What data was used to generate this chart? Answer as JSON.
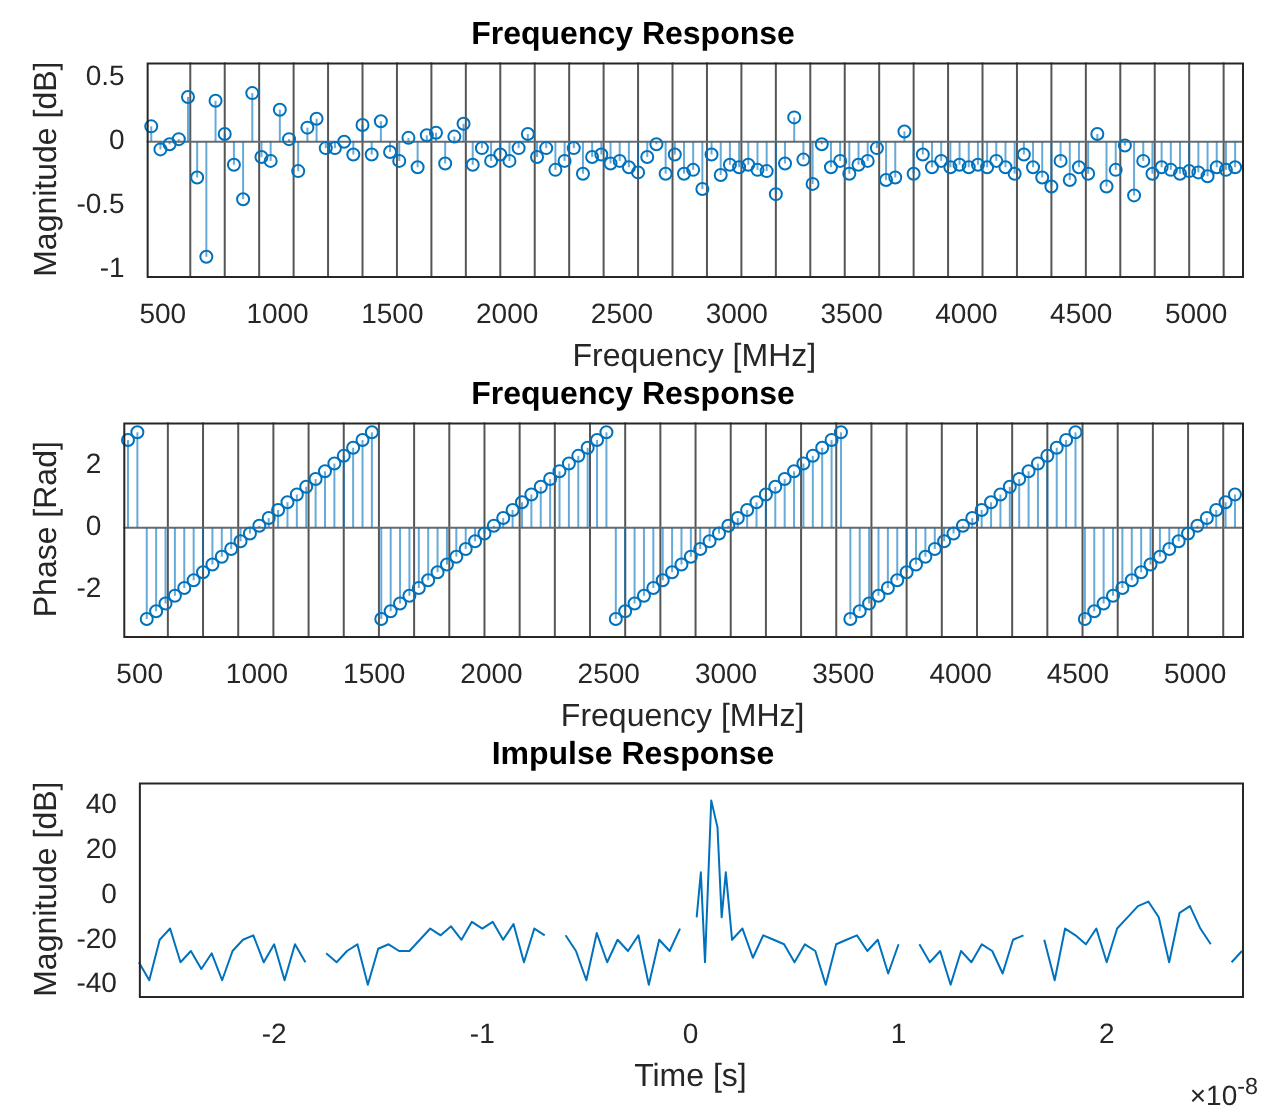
{
  "chart_data": [
    {
      "type": "lollipop",
      "title": "Frequency Response",
      "xlabel": "Frequency [MHz]",
      "ylabel": "Magnitude [dB]",
      "color": "#0072bd",
      "marker": "circle",
      "xlim": [
        430,
        5200
      ],
      "xticks": [
        500,
        1000,
        1500,
        2000,
        2500,
        3000,
        3500,
        4000,
        4500,
        5000
      ],
      "ylim": [
        -1.05,
        0.62
      ],
      "yticks": [
        -1,
        -0.5,
        0,
        0.5
      ],
      "x": [
        450,
        490,
        530,
        570,
        610,
        650,
        690,
        730,
        770,
        810,
        850,
        890,
        930,
        970,
        1010,
        1050,
        1090,
        1130,
        1170,
        1210,
        1250,
        1290,
        1330,
        1370,
        1410,
        1450,
        1490,
        1530,
        1570,
        1610,
        1650,
        1690,
        1730,
        1770,
        1810,
        1850,
        1890,
        1930,
        1970,
        2010,
        2050,
        2090,
        2130,
        2170,
        2210,
        2250,
        2290,
        2330,
        2370,
        2410,
        2450,
        2490,
        2530,
        2570,
        2610,
        2650,
        2690,
        2730,
        2770,
        2810,
        2850,
        2890,
        2930,
        2970,
        3010,
        3050,
        3090,
        3130,
        3170,
        3210,
        3250,
        3290,
        3330,
        3370,
        3410,
        3450,
        3490,
        3530,
        3570,
        3610,
        3650,
        3690,
        3730,
        3770,
        3810,
        3850,
        3890,
        3930,
        3970,
        4010,
        4050,
        4090,
        4130,
        4170,
        4210,
        4250,
        4290,
        4330,
        4370,
        4410,
        4450,
        4490,
        4530,
        4570,
        4610,
        4650,
        4690,
        4730,
        4770,
        4810,
        4850,
        4890,
        4930,
        4970,
        5010,
        5050,
        5090,
        5130,
        5170
      ],
      "values": [
        0.12,
        -0.06,
        -0.02,
        0.02,
        0.35,
        -0.28,
        -0.9,
        0.32,
        0.06,
        -0.18,
        -0.45,
        0.38,
        -0.12,
        -0.15,
        0.25,
        0.02,
        -0.23,
        0.11,
        0.18,
        -0.05,
        -0.05,
        0.0,
        -0.1,
        0.13,
        -0.1,
        0.16,
        -0.08,
        -0.15,
        0.03,
        -0.2,
        0.05,
        0.07,
        -0.17,
        0.04,
        0.14,
        -0.18,
        -0.05,
        -0.15,
        -0.1,
        -0.15,
        -0.05,
        0.06,
        -0.12,
        -0.05,
        -0.22,
        -0.15,
        -0.05,
        -0.25,
        -0.12,
        -0.1,
        -0.17,
        -0.15,
        -0.2,
        -0.24,
        -0.12,
        -0.02,
        -0.25,
        -0.1,
        -0.25,
        -0.22,
        -0.37,
        -0.1,
        -0.26,
        -0.18,
        -0.2,
        -0.18,
        -0.22,
        -0.23,
        -0.41,
        -0.17,
        0.19,
        -0.14,
        -0.33,
        -0.02,
        -0.2,
        -0.15,
        -0.25,
        -0.18,
        -0.15,
        -0.05,
        -0.3,
        -0.28,
        0.08,
        -0.25,
        -0.1,
        -0.2,
        -0.15,
        -0.2,
        -0.18,
        -0.2,
        -0.18,
        -0.2,
        -0.15,
        -0.2,
        -0.25,
        -0.1,
        -0.2,
        -0.28,
        -0.35,
        -0.15,
        -0.3,
        -0.2,
        -0.25,
        0.06,
        -0.35,
        -0.22,
        -0.03,
        -0.42,
        -0.15,
        -0.25,
        -0.2,
        -0.22,
        -0.25,
        -0.23,
        -0.24,
        -0.27,
        -0.2,
        -0.22,
        -0.2
      ],
      "ref_lines": [
        {
          "axis": "x",
          "value": 620,
          "color": "#555555"
        },
        {
          "axis": "x",
          "value": 770,
          "color": "#555555"
        },
        {
          "axis": "x",
          "value": 920,
          "color": "#555555"
        },
        {
          "axis": "x",
          "value": 1070,
          "color": "#555555"
        },
        {
          "axis": "x",
          "value": 1220,
          "color": "#555555"
        },
        {
          "axis": "x",
          "value": 1370,
          "color": "#555555"
        },
        {
          "axis": "x",
          "value": 1520,
          "color": "#555555"
        },
        {
          "axis": "x",
          "value": 1670,
          "color": "#555555"
        },
        {
          "axis": "x",
          "value": 1820,
          "color": "#555555"
        },
        {
          "axis": "x",
          "value": 1970,
          "color": "#555555"
        },
        {
          "axis": "x",
          "value": 2120,
          "color": "#555555"
        },
        {
          "axis": "x",
          "value": 2270,
          "color": "#555555"
        },
        {
          "axis": "x",
          "value": 2420,
          "color": "#555555"
        },
        {
          "axis": "x",
          "value": 2570,
          "color": "#555555"
        },
        {
          "axis": "x",
          "value": 2720,
          "color": "#555555"
        },
        {
          "axis": "x",
          "value": 2870,
          "color": "#555555"
        },
        {
          "axis": "x",
          "value": 3020,
          "color": "#555555"
        },
        {
          "axis": "x",
          "value": 3170,
          "color": "#555555"
        },
        {
          "axis": "x",
          "value": 3320,
          "color": "#555555"
        },
        {
          "axis": "x",
          "value": 3470,
          "color": "#555555"
        },
        {
          "axis": "x",
          "value": 3620,
          "color": "#555555"
        },
        {
          "axis": "x",
          "value": 3770,
          "color": "#555555"
        },
        {
          "axis": "x",
          "value": 3920,
          "color": "#555555"
        },
        {
          "axis": "x",
          "value": 4070,
          "color": "#555555"
        },
        {
          "axis": "x",
          "value": 4220,
          "color": "#555555"
        },
        {
          "axis": "x",
          "value": 4370,
          "color": "#555555"
        },
        {
          "axis": "x",
          "value": 4520,
          "color": "#555555"
        },
        {
          "axis": "x",
          "value": 4670,
          "color": "#555555"
        },
        {
          "axis": "x",
          "value": 4820,
          "color": "#555555"
        },
        {
          "axis": "x",
          "value": 4970,
          "color": "#555555"
        },
        {
          "axis": "x",
          "value": 5120,
          "color": "#555555"
        }
      ]
    },
    {
      "type": "lollipop",
      "title": "Frequency Response",
      "xlabel": "Frequency [MHz]",
      "ylabel": "Phase [Rad]",
      "color": "#0072bd",
      "marker": "circle",
      "xlim": [
        430,
        5200
      ],
      "xticks": [
        500,
        1000,
        1500,
        2000,
        2500,
        3000,
        3500,
        4000,
        4500,
        5000
      ],
      "ylim": [
        -3.5,
        3.4
      ],
      "yticks": [
        -2,
        0,
        2
      ],
      "x": [
        450,
        490,
        530,
        570,
        610,
        650,
        690,
        730,
        770,
        810,
        850,
        890,
        930,
        970,
        1010,
        1050,
        1090,
        1130,
        1170,
        1210,
        1250,
        1290,
        1330,
        1370,
        1410,
        1450,
        1490,
        1530,
        1570,
        1610,
        1650,
        1690,
        1730,
        1770,
        1810,
        1850,
        1890,
        1930,
        1970,
        2010,
        2050,
        2090,
        2130,
        2170,
        2210,
        2250,
        2290,
        2330,
        2370,
        2410,
        2450,
        2490,
        2530,
        2570,
        2610,
        2650,
        2690,
        2730,
        2770,
        2810,
        2850,
        2890,
        2930,
        2970,
        3010,
        3050,
        3090,
        3130,
        3170,
        3210,
        3250,
        3290,
        3330,
        3370,
        3410,
        3450,
        3490,
        3530,
        3570,
        3610,
        3650,
        3690,
        3730,
        3770,
        3810,
        3850,
        3890,
        3930,
        3970,
        4010,
        4050,
        4090,
        4130,
        4170,
        4210,
        4250,
        4290,
        4330,
        4370,
        4410,
        4450,
        4490,
        4530,
        4570,
        4610,
        4650,
        4690,
        4730,
        4770,
        4810,
        4850,
        4890,
        4930,
        4970,
        5010,
        5050,
        5090,
        5130,
        5170
      ],
      "values": [
        2.83,
        3.08,
        -2.95,
        -2.7,
        -2.45,
        -2.2,
        -1.95,
        -1.7,
        -1.44,
        -1.19,
        -0.94,
        -0.69,
        -0.44,
        -0.19,
        0.06,
        0.31,
        0.57,
        0.82,
        1.07,
        1.32,
        1.57,
        1.82,
        2.07,
        2.32,
        2.58,
        2.83,
        3.08,
        -2.95,
        -2.7,
        -2.45,
        -2.2,
        -1.95,
        -1.7,
        -1.44,
        -1.19,
        -0.94,
        -0.69,
        -0.44,
        -0.19,
        0.06,
        0.31,
        0.57,
        0.82,
        1.07,
        1.32,
        1.57,
        1.82,
        2.07,
        2.32,
        2.58,
        2.83,
        3.08,
        -2.95,
        -2.7,
        -2.45,
        -2.2,
        -1.95,
        -1.7,
        -1.44,
        -1.19,
        -0.94,
        -0.69,
        -0.44,
        -0.19,
        0.06,
        0.31,
        0.57,
        0.82,
        1.07,
        1.32,
        1.57,
        1.82,
        2.07,
        2.32,
        2.58,
        2.83,
        3.08,
        -2.95,
        -2.7,
        -2.45,
        -2.2,
        -1.95,
        -1.7,
        -1.44,
        -1.19,
        -0.94,
        -0.69,
        -0.44,
        -0.19,
        0.06,
        0.31,
        0.57,
        0.82,
        1.07,
        1.32,
        1.57,
        1.82,
        2.07,
        2.32,
        2.58,
        2.83,
        3.08,
        -2.95,
        -2.7,
        -2.45,
        -2.2,
        -1.95,
        -1.7,
        -1.44,
        -1.19,
        -0.94,
        -0.69,
        -0.44,
        -0.19,
        0.06,
        0.31,
        0.57,
        0.82,
        1.07
      ],
      "ref_lines": [
        {
          "axis": "x",
          "value": 620,
          "color": "#555555"
        },
        {
          "axis": "x",
          "value": 770,
          "color": "#555555"
        },
        {
          "axis": "x",
          "value": 920,
          "color": "#555555"
        },
        {
          "axis": "x",
          "value": 1070,
          "color": "#555555"
        },
        {
          "axis": "x",
          "value": 1220,
          "color": "#555555"
        },
        {
          "axis": "x",
          "value": 1370,
          "color": "#555555"
        },
        {
          "axis": "x",
          "value": 1520,
          "color": "#555555"
        },
        {
          "axis": "x",
          "value": 1670,
          "color": "#555555"
        },
        {
          "axis": "x",
          "value": 1820,
          "color": "#555555"
        },
        {
          "axis": "x",
          "value": 1970,
          "color": "#555555"
        },
        {
          "axis": "x",
          "value": 2120,
          "color": "#555555"
        },
        {
          "axis": "x",
          "value": 2270,
          "color": "#555555"
        },
        {
          "axis": "x",
          "value": 2420,
          "color": "#555555"
        },
        {
          "axis": "x",
          "value": 2570,
          "color": "#555555"
        },
        {
          "axis": "x",
          "value": 2720,
          "color": "#555555"
        },
        {
          "axis": "x",
          "value": 2870,
          "color": "#555555"
        },
        {
          "axis": "x",
          "value": 3020,
          "color": "#555555"
        },
        {
          "axis": "x",
          "value": 3170,
          "color": "#555555"
        },
        {
          "axis": "x",
          "value": 3320,
          "color": "#555555"
        },
        {
          "axis": "x",
          "value": 3470,
          "color": "#555555"
        },
        {
          "axis": "x",
          "value": 3620,
          "color": "#555555"
        },
        {
          "axis": "x",
          "value": 3770,
          "color": "#555555"
        },
        {
          "axis": "x",
          "value": 3920,
          "color": "#555555"
        },
        {
          "axis": "x",
          "value": 4070,
          "color": "#555555"
        },
        {
          "axis": "x",
          "value": 4220,
          "color": "#555555"
        },
        {
          "axis": "x",
          "value": 4370,
          "color": "#555555"
        },
        {
          "axis": "x",
          "value": 4520,
          "color": "#555555"
        },
        {
          "axis": "x",
          "value": 4670,
          "color": "#555555"
        },
        {
          "axis": "x",
          "value": 4820,
          "color": "#555555"
        },
        {
          "axis": "x",
          "value": 4970,
          "color": "#555555"
        },
        {
          "axis": "x",
          "value": 5120,
          "color": "#555555"
        }
      ]
    },
    {
      "type": "line",
      "title": "Impulse Response",
      "xlabel": "Time [s]",
      "ylabel": "Magnitude [dB]",
      "color": "#0072bd",
      "xlim": [
        -2.65,
        2.65
      ],
      "xticks": [
        -2,
        -1,
        0,
        1,
        2
      ],
      "ylim": [
        -45,
        50
      ],
      "yticks": [
        -40,
        -20,
        0,
        20,
        40
      ],
      "annotations": [
        "×10$^{-8}$"
      ],
      "x": [
        -2.65,
        -2.6,
        -2.55,
        -2.5,
        -2.45,
        -2.4,
        -2.35,
        -2.3,
        -2.25,
        -2.2,
        -2.15,
        -2.1,
        -2.05,
        -2.0,
        -1.95,
        -1.9,
        -1.85,
        -1.8,
        -1.75,
        -1.7,
        -1.65,
        -1.6,
        -1.55,
        -1.5,
        -1.45,
        -1.4,
        -1.35,
        -1.3,
        -1.25,
        -1.2,
        -1.15,
        -1.1,
        -1.05,
        -1.0,
        -0.95,
        -0.9,
        -0.85,
        -0.8,
        -0.75,
        -0.7,
        -0.65,
        -0.6,
        -0.55,
        -0.5,
        -0.45,
        -0.4,
        -0.35,
        -0.3,
        -0.25,
        -0.2,
        -0.15,
        -0.1,
        -0.05,
        0,
        0.03,
        0.05,
        0.07,
        0.1,
        0.13,
        0.15,
        0.17,
        0.2,
        0.25,
        0.3,
        0.35,
        0.4,
        0.45,
        0.5,
        0.55,
        0.6,
        0.65,
        0.7,
        0.75,
        0.8,
        0.85,
        0.9,
        0.95,
        1.0,
        1.05,
        1.1,
        1.15,
        1.2,
        1.25,
        1.3,
        1.35,
        1.4,
        1.45,
        1.5,
        1.55,
        1.6,
        1.65,
        1.7,
        1.75,
        1.8,
        1.85,
        1.9,
        1.95,
        2.0,
        2.05,
        2.1,
        2.15,
        2.2,
        2.25,
        2.3,
        2.35,
        2.4,
        2.45,
        2.5,
        2.55,
        2.6,
        2.65
      ],
      "values": [
        -30,
        -38,
        -20,
        -15,
        -30,
        -25,
        -33,
        -26,
        -38,
        -25,
        -20,
        -18,
        -30,
        -22,
        -38,
        -22,
        -30,
        null,
        -26,
        -30,
        -25,
        -22,
        -40,
        -24,
        -22,
        -25,
        -25,
        -20,
        -15,
        -18,
        -14,
        -20,
        -12,
        -15,
        -12,
        -20,
        -13,
        -30,
        -15,
        -18,
        null,
        -18,
        -25,
        -38,
        -17,
        -30,
        -20,
        -25,
        -18,
        -40,
        -20,
        -25,
        -15,
        null,
        -10,
        10,
        -30,
        42,
        30,
        -10,
        10,
        -20,
        -15,
        -28,
        -18,
        -20,
        -22,
        -30,
        -22,
        -25,
        -40,
        -22,
        -20,
        -18,
        -25,
        -20,
        -35,
        -22,
        null,
        -22,
        -30,
        -25,
        -40,
        -25,
        -30,
        -22,
        -25,
        -35,
        -20,
        -18,
        null,
        -20,
        -38,
        -15,
        -18,
        -22,
        -15,
        -30,
        -15,
        -10,
        -5,
        -3,
        -10,
        -30,
        -8,
        -5,
        -15,
        -22,
        null,
        -30,
        -25
      ]
    }
  ]
}
